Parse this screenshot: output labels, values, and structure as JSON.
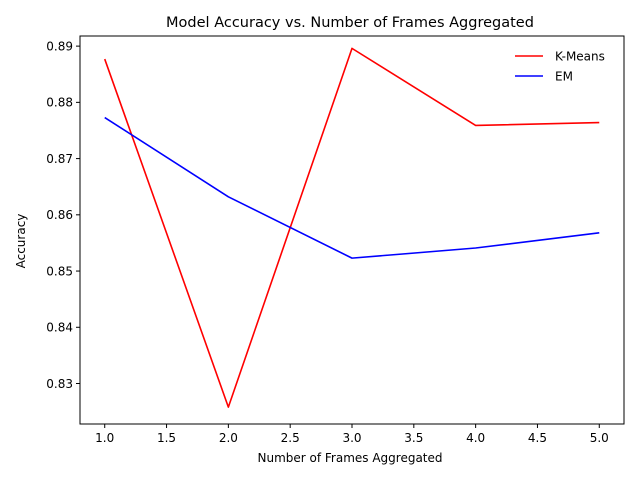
{
  "chart_data": {
    "type": "line",
    "title": "Model Accuracy vs. Number of Frames Aggregated",
    "xlabel": "Number of Frames Aggregated",
    "ylabel": "Accuracy",
    "x": [
      1,
      2,
      3,
      4,
      5
    ],
    "xlim": [
      0.8,
      5.2
    ],
    "ylim": [
      0.8228,
      0.8918
    ],
    "xticks": [
      1.0,
      1.5,
      2.0,
      2.5,
      3.0,
      3.5,
      4.0,
      4.5,
      5.0
    ],
    "xtick_labels": [
      "1.0",
      "1.5",
      "2.0",
      "2.5",
      "3.0",
      "3.5",
      "4.0",
      "4.5",
      "5.0"
    ],
    "yticks": [
      0.83,
      0.84,
      0.85,
      0.86,
      0.87,
      0.88,
      0.89
    ],
    "ytick_labels": [
      "0.83",
      "0.84",
      "0.85",
      "0.86",
      "0.87",
      "0.88",
      "0.89"
    ],
    "grid": false,
    "legend_position": "top-right",
    "series": [
      {
        "name": "K-Means",
        "color": "#ff0000",
        "values": [
          0.8877,
          0.8258,
          0.8896,
          0.8759,
          0.8764
        ]
      },
      {
        "name": "EM",
        "color": "#0000ff",
        "values": [
          0.8773,
          0.8632,
          0.8523,
          0.8541,
          0.8568
        ]
      }
    ]
  }
}
